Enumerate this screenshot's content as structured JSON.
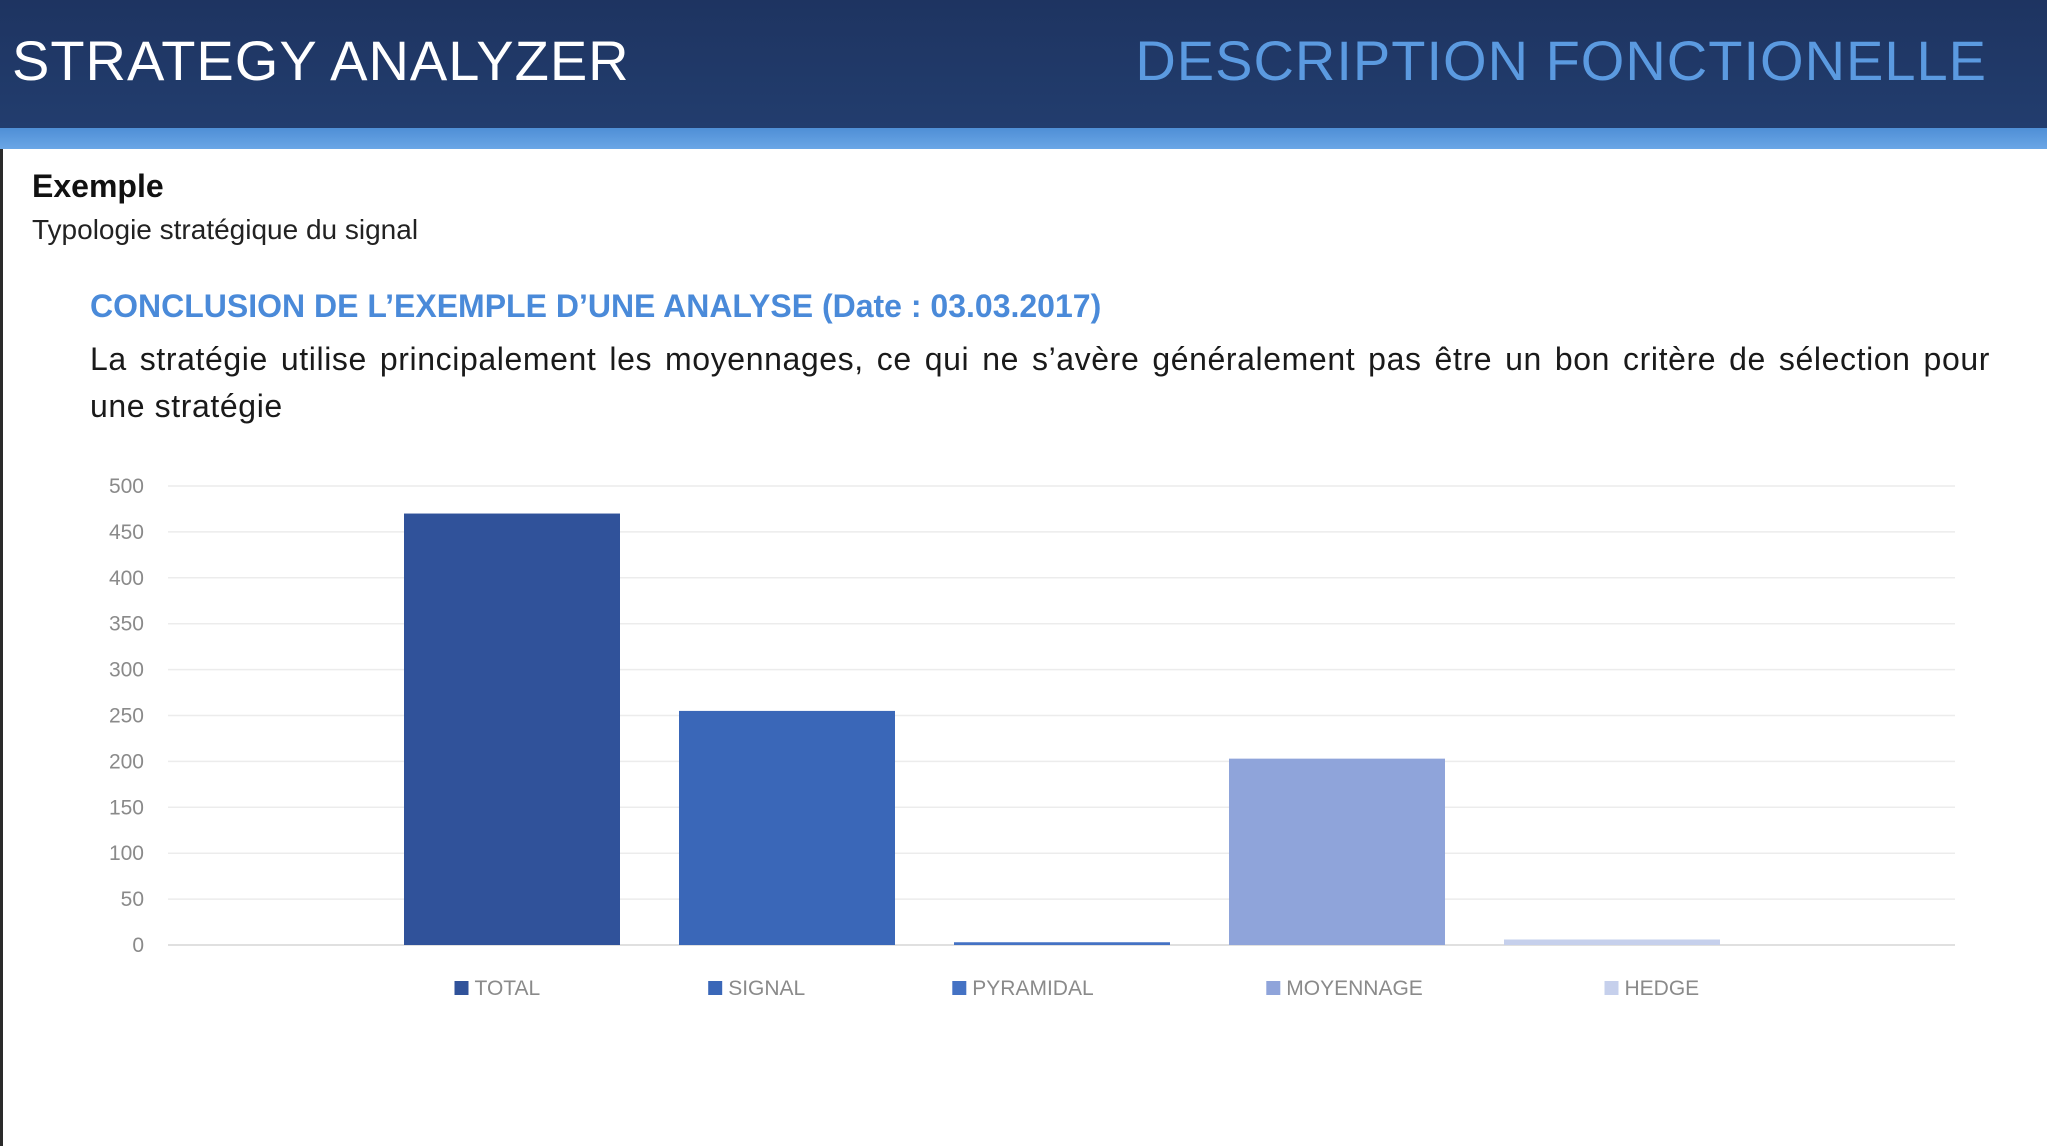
{
  "header": {
    "app_title": "STRATEGY ANALYZER",
    "section_title": "DESCRIPTION FONCTIONELLE"
  },
  "content": {
    "heading": "Exemple",
    "subheading": "Typologie stratégique du signal",
    "conclusion_title": "CONCLUSION DE L’EXEMPLE D’UNE ANALYSE (Date : 03.03.2017)",
    "conclusion_text": "La stratégie utilise principalement les moyennages, ce qui ne s’avère généralement pas être un bon critère de sélection pour une stratégie"
  },
  "colors": {
    "header_bg": "#1e3461",
    "header_stripe": "#5b9ae0",
    "section_title": "#5b9ae0",
    "conclusion_title": "#4a8ad9"
  },
  "chart_data": {
    "type": "bar",
    "categories": [
      "TOTAL",
      "SIGNAL",
      "PYRAMIDAL",
      "MOYENNAGE",
      "HEDGE"
    ],
    "values": [
      470,
      255,
      3,
      203,
      6
    ],
    "colors": [
      "#30529a",
      "#3a67b8",
      "#4472c4",
      "#8fa4da",
      "#c6d0ec"
    ],
    "ylim": [
      0,
      500
    ],
    "yticks": [
      0,
      50,
      100,
      150,
      200,
      250,
      300,
      350,
      400,
      450,
      500
    ],
    "grid": true,
    "legend_position": "bottom"
  }
}
